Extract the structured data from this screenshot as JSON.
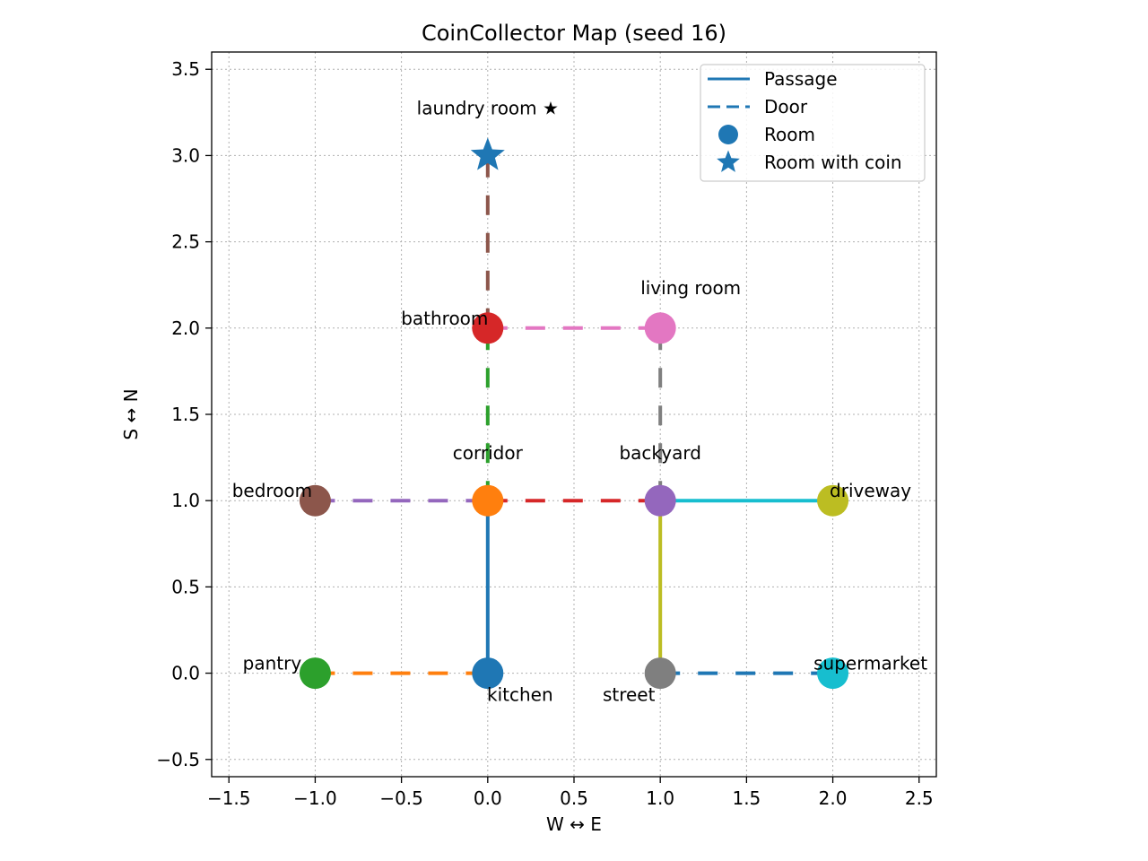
{
  "chart_data": {
    "type": "scatter",
    "title": "CoinCollector Map (seed 16)",
    "xlabel": "W ↔ E",
    "ylabel": "S ↔ N",
    "xlim": [
      -1.6,
      2.6
    ],
    "ylim": [
      -0.6,
      3.6
    ],
    "xticks": [
      "−1.5",
      "−1.0",
      "−0.5",
      "0.0",
      "0.5",
      "1.0",
      "1.5",
      "2.0",
      "2.5"
    ],
    "xtick_values": [
      -1.5,
      -1.0,
      -0.5,
      0.0,
      0.5,
      1.0,
      1.5,
      2.0,
      2.5
    ],
    "yticks": [
      "−0.5",
      "0.0",
      "0.5",
      "1.0",
      "1.5",
      "2.0",
      "2.5",
      "3.0",
      "3.5"
    ],
    "ytick_values": [
      -0.5,
      0.0,
      0.5,
      1.0,
      1.5,
      2.0,
      2.5,
      3.0,
      3.5
    ],
    "grid": true,
    "legend_position": "top-right",
    "legend": [
      {
        "label": "Passage",
        "kind": "solid-line"
      },
      {
        "label": "Door",
        "kind": "dashed-line"
      },
      {
        "label": "Room",
        "kind": "circle"
      },
      {
        "label": "Room with coin",
        "kind": "star"
      }
    ],
    "rooms": [
      {
        "name": "kitchen",
        "label": "kitchen",
        "x": 0,
        "y": 0,
        "color": "#1f77b4",
        "marker": "circle",
        "label_pos": "below-right"
      },
      {
        "name": "corridor",
        "label": "corridor",
        "x": 0,
        "y": 1,
        "color": "#ff7f0e",
        "marker": "circle",
        "label_pos": "above"
      },
      {
        "name": "pantry",
        "label": "pantry",
        "x": -1,
        "y": 0,
        "color": "#2ca02c",
        "marker": "circle",
        "label_pos": "upper-left"
      },
      {
        "name": "bathroom",
        "label": "bathroom",
        "x": 0,
        "y": 2,
        "color": "#d62728",
        "marker": "circle",
        "label_pos": "upper-left"
      },
      {
        "name": "backyard",
        "label": "backyard",
        "x": 1,
        "y": 1,
        "color": "#9467bd",
        "marker": "circle",
        "label_pos": "above"
      },
      {
        "name": "bedroom",
        "label": "bedroom",
        "x": -1,
        "y": 1,
        "color": "#8c564b",
        "marker": "circle",
        "label_pos": "upper-left"
      },
      {
        "name": "living-room",
        "label": "living room",
        "x": 1,
        "y": 2,
        "color": "#e377c2",
        "marker": "circle",
        "label_pos": "above-right"
      },
      {
        "name": "street",
        "label": "street",
        "x": 1,
        "y": 0,
        "color": "#7f7f7f",
        "marker": "circle",
        "label_pos": "below-left"
      },
      {
        "name": "driveway",
        "label": "driveway",
        "x": 2,
        "y": 1,
        "color": "#bcbd22",
        "marker": "circle",
        "label_pos": "upper-right"
      },
      {
        "name": "supermarket",
        "label": "supermarket",
        "x": 2,
        "y": 0,
        "color": "#17becf",
        "marker": "circle",
        "label_pos": "upper-right"
      },
      {
        "name": "laundry-room",
        "label": "laundry room ★",
        "x": 0,
        "y": 3,
        "color": "#1f77b4",
        "marker": "star",
        "label_pos": "above"
      }
    ],
    "connections": [
      {
        "from": "kitchen",
        "to": "corridor",
        "kind": "passage",
        "color": "#1f77b4"
      },
      {
        "from": "pantry",
        "to": "kitchen",
        "kind": "door",
        "color": "#ff7f0e"
      },
      {
        "from": "corridor",
        "to": "bathroom",
        "kind": "door",
        "color": "#2ca02c"
      },
      {
        "from": "corridor",
        "to": "backyard",
        "kind": "door",
        "color": "#d62728"
      },
      {
        "from": "bedroom",
        "to": "corridor",
        "kind": "door",
        "color": "#9467bd"
      },
      {
        "from": "bathroom",
        "to": "laundry-room",
        "kind": "door",
        "color": "#8c564b"
      },
      {
        "from": "bathroom",
        "to": "living-room",
        "kind": "door",
        "color": "#e377c2"
      },
      {
        "from": "backyard",
        "to": "living-room",
        "kind": "door",
        "color": "#7f7f7f"
      },
      {
        "from": "backyard",
        "to": "street",
        "kind": "passage",
        "color": "#bcbd22"
      },
      {
        "from": "backyard",
        "to": "driveway",
        "kind": "passage",
        "color": "#17becf"
      },
      {
        "from": "street",
        "to": "supermarket",
        "kind": "door",
        "color": "#1f77b4"
      }
    ]
  }
}
